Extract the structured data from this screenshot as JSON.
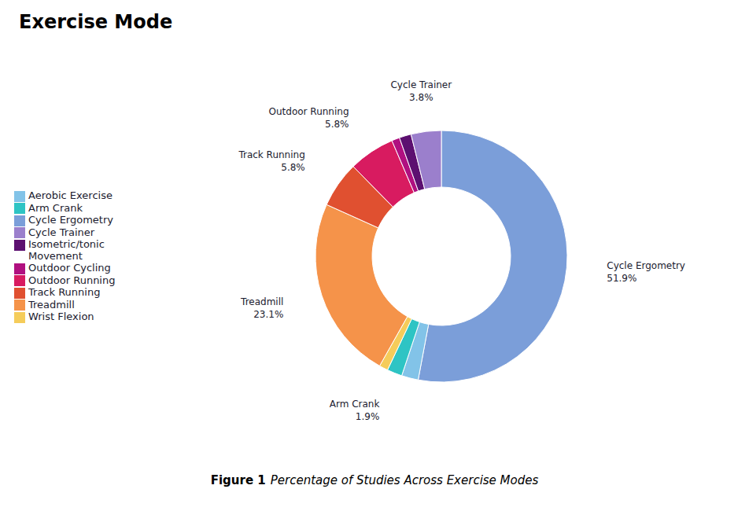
{
  "chart_data": {
    "type": "pie",
    "title": "Exercise Mode",
    "annotations": [
      "Figure 1",
      "Percentage of Studies Across Exercise Modes"
    ],
    "categories": [
      "Cycle Ergometry",
      "Aerobic Exercise",
      "Arm Crank",
      "Wrist Flexion",
      "Treadmill",
      "Track Running",
      "Outdoor Running",
      "Outdoor Cycling",
      "Isometric/tonic\nMovement",
      "Cycle Trainer"
    ],
    "values": [
      51.9,
      2.1,
      1.9,
      1.1,
      23.1,
      5.8,
      5.8,
      1.0,
      1.5,
      3.8
    ],
    "value_labels": [
      "51.9%",
      null,
      "1.9%",
      null,
      "23.1%",
      "5.8%",
      "5.8%",
      null,
      null,
      "3.8%"
    ],
    "colors": [
      "#7B9ED9",
      "#82C3E8",
      "#2EC4C4",
      "#F5CC5A",
      "#F5934A",
      "#E05030",
      "#D81B60",
      "#B01080",
      "#5C1070",
      "#9B7FCC"
    ],
    "data_labels": true,
    "legend": "left"
  }
}
